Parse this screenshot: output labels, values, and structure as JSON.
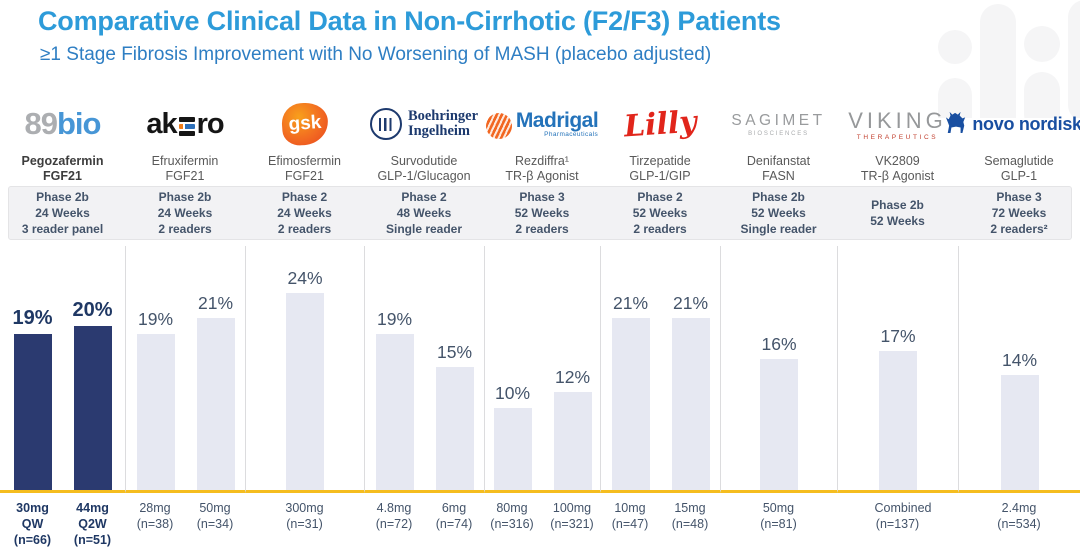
{
  "header": {
    "title": "Comparative Clinical Data in Non-Cirrhotic (F2/F3) Patients",
    "subtitle": "≥1 Stage Fibrosis Improvement with No Worsening of MASH (placebo adjusted)"
  },
  "colors": {
    "title": "#2D9BD9",
    "subtitle": "#2E7EC3",
    "highlight_bar": "#2B3A70",
    "bar": "#E6E8F2",
    "baseline": "#F5BD1F",
    "text": "#44546A",
    "highlight_text": "#1F3864"
  },
  "columns": [
    {
      "slug": "89bio",
      "highlight": true,
      "logo": {
        "type": "89bio",
        "text_gray": "89",
        "text_blue": "bio"
      },
      "drug": "Pegozafermin",
      "target": "FGF21",
      "phase": [
        "Phase 2b",
        "24 Weeks",
        "3 reader panel"
      ],
      "bars": [
        {
          "value": 19,
          "pct": "19%",
          "dose": [
            "30mg",
            "QW",
            "(n=66)"
          ]
        },
        {
          "value": 20,
          "pct": "20%",
          "dose": [
            "44mg",
            "Q2W",
            "(n=51)"
          ]
        }
      ]
    },
    {
      "slug": "akero",
      "highlight": false,
      "logo": {
        "type": "akero",
        "pre": "ak",
        "post": "ro"
      },
      "drug": "Efruxifermin",
      "target": "FGF21",
      "phase": [
        "Phase 2b",
        "24 Weeks",
        "2 readers"
      ],
      "bars": [
        {
          "value": 19,
          "pct": "19%",
          "dose": [
            "28mg",
            "(n=38)"
          ]
        },
        {
          "value": 21,
          "pct": "21%",
          "dose": [
            "50mg",
            "(n=34)"
          ]
        }
      ]
    },
    {
      "slug": "gsk",
      "highlight": false,
      "logo": {
        "type": "gsk",
        "text": "gsk"
      },
      "drug": "Efimosfermin",
      "target": "FGF21",
      "phase": [
        "Phase 2",
        "24 Weeks",
        "2 readers"
      ],
      "bars": [
        {
          "value": 24,
          "pct": "24%",
          "dose": [
            "300mg",
            "(n=31)"
          ]
        }
      ]
    },
    {
      "slug": "boehringer",
      "highlight": false,
      "logo": {
        "type": "boehringer",
        "line1": "Boehringer",
        "line2": "Ingelheim"
      },
      "drug": "Survodutide",
      "target": "GLP-1/Glucagon",
      "phase": [
        "Phase 2",
        "48 Weeks",
        "Single reader"
      ],
      "bars": [
        {
          "value": 19,
          "pct": "19%",
          "dose": [
            "4.8mg",
            "(n=72)"
          ]
        },
        {
          "value": 15,
          "pct": "15%",
          "dose": [
            "6mg",
            "(n=74)"
          ]
        }
      ]
    },
    {
      "slug": "madrigal",
      "highlight": false,
      "logo": {
        "type": "madrigal",
        "name": "Madrigal",
        "sub": "Pharmaceuticals"
      },
      "drug": "Rezdiffra¹",
      "target": "TR-β Agonist",
      "phase": [
        "Phase 3",
        "52 Weeks",
        "2 readers"
      ],
      "bars": [
        {
          "value": 10,
          "pct": "10%",
          "dose": [
            "80mg",
            "(n=316)"
          ]
        },
        {
          "value": 12,
          "pct": "12%",
          "dose": [
            "100mg",
            "(n=321)"
          ]
        }
      ]
    },
    {
      "slug": "lilly",
      "highlight": false,
      "logo": {
        "type": "lilly",
        "text": "Lilly"
      },
      "drug": "Tirzepatide",
      "target": "GLP-1/GIP",
      "phase": [
        "Phase 2",
        "52 Weeks",
        "2 readers"
      ],
      "bars": [
        {
          "value": 21,
          "pct": "21%",
          "dose": [
            "10mg",
            "(n=47)"
          ]
        },
        {
          "value": 21,
          "pct": "21%",
          "dose": [
            "15mg",
            "(n=48)"
          ]
        }
      ]
    },
    {
      "slug": "sagimet",
      "highlight": false,
      "logo": {
        "type": "sagimet",
        "name": "SAGIMET",
        "sub": "BIOSCIENCES"
      },
      "drug": "Denifanstat",
      "target": "FASN",
      "phase": [
        "Phase 2b",
        "52 Weeks",
        "Single reader"
      ],
      "bars": [
        {
          "value": 16,
          "pct": "16%",
          "dose": [
            "50mg",
            "(n=81)"
          ]
        }
      ]
    },
    {
      "slug": "viking",
      "highlight": false,
      "logo": {
        "type": "viking",
        "name": "VIKING",
        "sub": "THERAPEUTICS"
      },
      "drug": "VK2809",
      "target": "TR-β Agonist",
      "phase": [
        "Phase 2b",
        "52 Weeks"
      ],
      "bars": [
        {
          "value": 17,
          "pct": "17%",
          "dose": [
            "Combined",
            "(n=137)"
          ]
        }
      ]
    },
    {
      "slug": "novo",
      "highlight": false,
      "logo": {
        "type": "novo",
        "text": "novo nordisk",
        "reg": "®"
      },
      "drug": "Semaglutide",
      "target": "GLP-1",
      "phase": [
        "Phase 3",
        "72 Weeks",
        "2 readers²"
      ],
      "bars": [
        {
          "value": 14,
          "pct": "14%",
          "dose": [
            "2.4mg",
            "(n=534)"
          ]
        }
      ]
    }
  ],
  "chart_data": {
    "type": "bar",
    "title": "Comparative Clinical Data in Non-Cirrhotic (F2/F3) Patients",
    "subtitle": "≥1 Stage Fibrosis Improvement with No Worsening of MASH (placebo adjusted)",
    "unit": "%",
    "ylim": [
      0,
      30
    ],
    "grid": false,
    "legend": "none",
    "categories": [
      "Pegozafermin 30mg QW (n=66)",
      "Pegozafermin 44mg Q2W (n=51)",
      "Efruxifermin 28mg (n=38)",
      "Efruxifermin 50mg (n=34)",
      "Efimosfermin 300mg (n=31)",
      "Survodutide 4.8mg (n=72)",
      "Survodutide 6mg (n=74)",
      "Rezdiffra 80mg (n=316)",
      "Rezdiffra 100mg (n=321)",
      "Tirzepatide 10mg (n=47)",
      "Tirzepatide 15mg (n=48)",
      "Denifanstat 50mg (n=81)",
      "VK2809 Combined (n=137)",
      "Semaglutide 2.4mg (n=534)"
    ],
    "series": [
      {
        "name": "≥1 Stage Fibrosis Improvement, placebo adjusted (%)",
        "values": [
          19,
          20,
          19,
          21,
          24,
          19,
          15,
          10,
          12,
          21,
          21,
          16,
          17,
          14
        ]
      }
    ]
  }
}
